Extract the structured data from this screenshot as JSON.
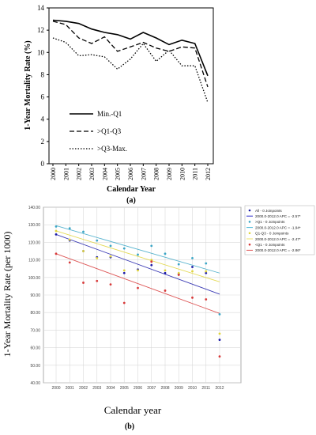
{
  "chart_data": [
    {
      "panel_label": "(a)",
      "type": "line",
      "x": [
        "2000",
        "2001",
        "2002",
        "2003",
        "2004",
        "2005",
        "2006",
        "2007",
        "2008",
        "2009",
        "2010",
        "2011",
        "2012"
      ],
      "xlabel": "Calendar Year",
      "ylabel": "1-Year Mortality Rate (%)",
      "ylim": [
        0,
        14
      ],
      "yticks": [
        "0",
        "2",
        "4",
        "6",
        "8",
        "10",
        "12",
        "14"
      ],
      "grid": false,
      "legend_position": "bottom-left inside",
      "series": [
        {
          "name": "Min.-Q1",
          "style": "solid",
          "values": [
            12.9,
            12.8,
            12.6,
            12.1,
            11.8,
            11.6,
            11.2,
            11.8,
            11.3,
            10.7,
            11.1,
            10.8,
            7.9
          ]
        },
        {
          "name": ">Q1-Q3",
          "style": "dashed",
          "values": [
            12.8,
            12.5,
            11.3,
            10.8,
            11.4,
            10.1,
            10.5,
            10.9,
            10.4,
            10.1,
            10.5,
            10.4,
            6.9
          ]
        },
        {
          "name": ">Q3-Max.",
          "style": "dotted",
          "values": [
            11.3,
            10.9,
            9.7,
            9.8,
            9.6,
            8.5,
            9.4,
            10.8,
            9.2,
            10.2,
            8.8,
            8.8,
            5.5
          ]
        }
      ]
    },
    {
      "panel_label": "(b)",
      "type": "scatter",
      "x": [
        "2000",
        "2001",
        "2002",
        "2003",
        "2004",
        "2005",
        "2006",
        "2007",
        "2008",
        "2009",
        "2010",
        "2011",
        "2012"
      ],
      "xlabel": "Calendar year",
      "ylabel": "1-Year Mortality Rate (per 1000)",
      "ylim": [
        40,
        140
      ],
      "yticks": [
        "40.00",
        "50.00",
        "60.00",
        "70.00",
        "80.00",
        "90.00",
        "100.00",
        "110.00",
        "120.00",
        "130.00",
        "140.00"
      ],
      "grid": true,
      "legend_position": "top-right outside",
      "legend": [
        {
          "label": "All - 0 Joinpoints",
          "kind": "point",
          "color": "#1a1aa8"
        },
        {
          "label": "2000.0-2012.0 APC = -2.57*",
          "kind": "line",
          "color": "#2a2acc"
        },
        {
          "label": ">Q1 - 0 Joinpoints",
          "kind": "point",
          "color": "#3aa6c6"
        },
        {
          "label": "2000.0-2012.0 APC = -1.94*",
          "kind": "line",
          "color": "#49b8d8"
        },
        {
          "label": "Q1-Q3 - 0 Joinpoints",
          "kind": "point",
          "color": "#e0d43a"
        },
        {
          "label": "2000.0-2012.0 APC = -2.47*",
          "kind": "line",
          "color": "#ece26a"
        },
        {
          "label": "<Q1 - 0 Joinpoints",
          "kind": "point",
          "color": "#d83a3a"
        },
        {
          "label": "2000.0-2012.0 APC = -2.86*",
          "kind": "line",
          "color": "#e05555"
        }
      ],
      "series": [
        {
          "name": "All",
          "color": "#1a1aa8",
          "points": [
            124.5,
            121,
            115,
            111.5,
            111.5,
            102.5,
            104.5,
            107,
            102.5,
            102,
            106,
            102.5,
            64.5
          ],
          "fit": [
            124.5,
            90.5
          ]
        },
        {
          "name": ">Q1",
          "color": "#3aa6c6",
          "points": [
            129,
            128,
            126,
            121,
            118,
            116.5,
            113,
            118,
            113.5,
            107.5,
            111,
            108,
            79
          ],
          "fit": [
            129.5,
            102.5
          ]
        },
        {
          "name": "Q1-Q3",
          "color": "#e0d43a",
          "points": [
            126.5,
            121.5,
            115,
            111,
            112,
            104,
            104,
            110,
            104,
            102.5,
            103.5,
            103.5,
            68
          ],
          "fit": [
            126.5,
            97.5
          ]
        },
        {
          "name": "<Q1",
          "color": "#d83a3a",
          "points": [
            113.5,
            108.5,
            97,
            98,
            96,
            85.5,
            94,
            109,
            92.5,
            101.5,
            88.5,
            87.5,
            55
          ],
          "fit": [
            113.5,
            79.5
          ]
        }
      ]
    }
  ]
}
